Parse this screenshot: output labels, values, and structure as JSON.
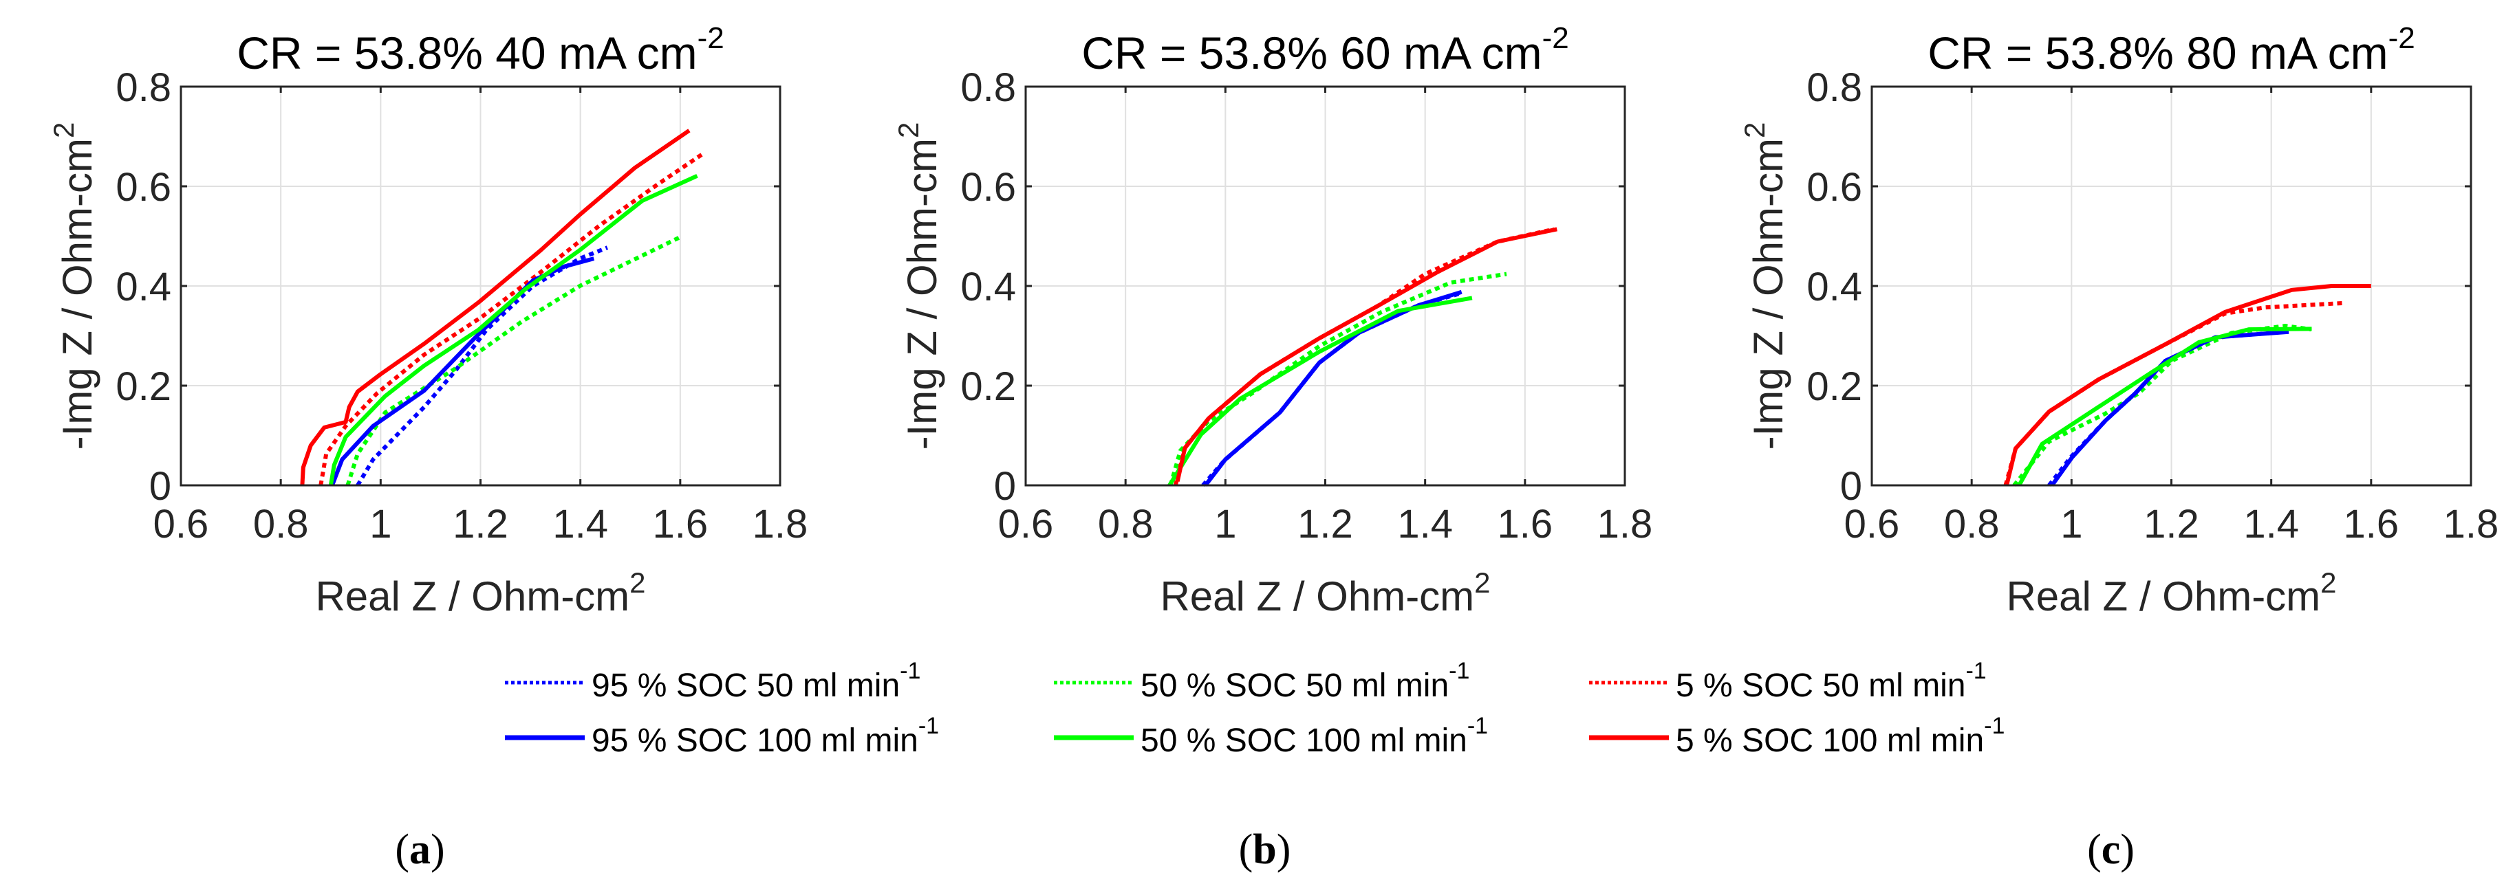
{
  "chart_data": {
    "type": "line",
    "panels": [
      {
        "label": "a",
        "title": "CR = 53.8%  40 mA cm",
        "title_sup": "-2",
        "xlabel": "Real Z / Ohm-cm",
        "xlabel_sup": "2",
        "ylabel": "-Img Z / Ohm-cm",
        "ylabel_sup": "2",
        "xlim": [
          0.6,
          1.8
        ],
        "ylim": [
          0,
          0.8
        ],
        "xticks": [
          "0.6",
          "0.8",
          "1",
          "1.2",
          "1.4",
          "1.6",
          "1.8"
        ],
        "yticks": [
          "0",
          "0.2",
          "0.4",
          "0.6",
          "0.8"
        ],
        "grid": true,
        "series": [
          {
            "name": "95 % SOC 50 ml min-1",
            "points": [
              [
                0.954,
                0
              ],
              [
                0.985,
                0.052
              ],
              [
                1.087,
                0.157
              ],
              [
                1.149,
                0.229
              ],
              [
                1.212,
                0.312
              ],
              [
                1.305,
                0.4
              ],
              [
                1.399,
                0.455
              ],
              [
                1.454,
                0.477
              ]
            ]
          },
          {
            "name": "50 % SOC 50 ml min-1",
            "points": [
              [
                0.934,
                0
              ],
              [
                0.954,
                0.063
              ],
              [
                1.009,
                0.146
              ],
              [
                1.149,
                0.234
              ],
              [
                1.282,
                0.328
              ],
              [
                1.399,
                0.4
              ],
              [
                1.602,
                0.499
              ]
            ]
          },
          {
            "name": "5 % SOC 50 ml min-1",
            "points": [
              [
                0.88,
                0
              ],
              [
                0.891,
                0.063
              ],
              [
                0.93,
                0.119
              ],
              [
                0.993,
                0.185
              ],
              [
                1.087,
                0.262
              ],
              [
                1.204,
                0.339
              ],
              [
                1.321,
                0.428
              ],
              [
                1.438,
                0.521
              ],
              [
                1.555,
                0.604
              ],
              [
                1.645,
                0.665
              ]
            ]
          },
          {
            "name": "95 % SOC 100 ml min-1",
            "points": [
              [
                0.903,
                0
              ],
              [
                0.923,
                0.052
              ],
              [
                0.985,
                0.119
              ],
              [
                1.087,
                0.19
              ],
              [
                1.188,
                0.295
              ],
              [
                1.305,
                0.411
              ],
              [
                1.368,
                0.439
              ],
              [
                1.427,
                0.455
              ]
            ]
          },
          {
            "name": "50 % SOC 100 ml min-1",
            "points": [
              [
                0.9,
                0
              ],
              [
                0.907,
                0.041
              ],
              [
                0.93,
                0.097
              ],
              [
                1.009,
                0.179
              ],
              [
                1.087,
                0.24
              ],
              [
                1.196,
                0.312
              ],
              [
                1.29,
                0.394
              ],
              [
                1.399,
                0.472
              ],
              [
                1.524,
                0.571
              ],
              [
                1.634,
                0.621
              ]
            ]
          },
          {
            "name": "5 % SOC 100 ml min-1",
            "points": [
              [
                0.843,
                0
              ],
              [
                0.845,
                0.036
              ],
              [
                0.86,
                0.08
              ],
              [
                0.887,
                0.116
              ],
              [
                0.93,
                0.127
              ],
              [
                0.937,
                0.157
              ],
              [
                0.954,
                0.188
              ],
              [
                1.0,
                0.223
              ],
              [
                1.087,
                0.284
              ],
              [
                1.196,
                0.367
              ],
              [
                1.321,
                0.472
              ],
              [
                1.399,
                0.543
              ],
              [
                1.509,
                0.637
              ],
              [
                1.618,
                0.712
              ]
            ]
          }
        ]
      },
      {
        "label": "b",
        "title": "CR = 53.8%  60 mA cm",
        "title_sup": "-2",
        "xlabel": "Real Z / Ohm-cm",
        "xlabel_sup": "2",
        "ylabel": "-Img Z / Ohm-cm",
        "ylabel_sup": "2",
        "xlim": [
          0.6,
          1.8
        ],
        "ylim": [
          0,
          0.8
        ],
        "xticks": [
          "0.6",
          "0.8",
          "1",
          "1.2",
          "1.4",
          "1.6",
          "1.8"
        ],
        "yticks": [
          "0",
          "0.2",
          "0.4",
          "0.6",
          "0.8"
        ],
        "grid": true,
        "series": [
          {
            "name": "95 % SOC 50 ml min-1",
            "points": [
              [
                0.955,
                0
              ],
              [
                0.998,
                0.05
              ],
              [
                1.109,
                0.146
              ],
              [
                1.188,
                0.246
              ],
              [
                1.267,
                0.306
              ],
              [
                1.386,
                0.361
              ],
              [
                1.47,
                0.385
              ]
            ]
          },
          {
            "name": "50 % SOC 50 ml min-1",
            "points": [
              [
                0.89,
                0
              ],
              [
                0.91,
                0.07
              ],
              [
                0.967,
                0.13
              ],
              [
                1.054,
                0.185
              ],
              [
                1.188,
                0.279
              ],
              [
                1.313,
                0.348
              ],
              [
                1.452,
                0.407
              ],
              [
                1.563,
                0.424
              ]
            ]
          },
          {
            "name": "5 % SOC 50 ml min-1",
            "points": [
              [
                0.9,
                0
              ],
              [
                0.919,
                0.075
              ],
              [
                0.967,
                0.135
              ],
              [
                1.07,
                0.223
              ],
              [
                1.188,
                0.295
              ],
              [
                1.307,
                0.361
              ],
              [
                1.4,
                0.424
              ],
              [
                1.545,
                0.489
              ],
              [
                1.658,
                0.514
              ]
            ]
          },
          {
            "name": "95 % SOC 100 ml min-1",
            "points": [
              [
                0.96,
                0
              ],
              [
                1.0,
                0.052
              ],
              [
                1.109,
                0.146
              ],
              [
                1.188,
                0.246
              ],
              [
                1.267,
                0.306
              ],
              [
                1.386,
                0.361
              ],
              [
                1.473,
                0.388
              ]
            ]
          },
          {
            "name": "50 % SOC 100 ml min-1",
            "points": [
              [
                0.888,
                0
              ],
              [
                0.951,
                0.102
              ],
              [
                1.03,
                0.174
              ],
              [
                1.188,
                0.268
              ],
              [
                1.346,
                0.35
              ],
              [
                1.494,
                0.376
              ]
            ]
          },
          {
            "name": "5 % SOC 100 ml min-1",
            "points": [
              [
                0.904,
                0.008
              ],
              [
                0.919,
                0.075
              ],
              [
                0.967,
                0.135
              ],
              [
                1.07,
                0.223
              ],
              [
                1.188,
                0.295
              ],
              [
                1.307,
                0.361
              ],
              [
                1.425,
                0.428
              ],
              [
                1.545,
                0.489
              ],
              [
                1.664,
                0.514
              ]
            ]
          }
        ]
      },
      {
        "label": "c",
        "title": "CR = 53.8%  80 mA cm",
        "title_sup": "-2",
        "xlabel": "Real Z / Ohm-cm",
        "xlabel_sup": "2",
        "ylabel": "-Img Z / Ohm-cm",
        "ylabel_sup": "2",
        "xlim": [
          0.6,
          1.8
        ],
        "ylim": [
          0,
          0.8
        ],
        "xticks": [
          "0.6",
          "0.8",
          "1",
          "1.2",
          "1.4",
          "1.6",
          "1.8"
        ],
        "yticks": [
          "0",
          "0.2",
          "0.4",
          "0.6",
          "0.8"
        ],
        "grid": true,
        "series": [
          {
            "name": "95 % SOC 50 ml min-1",
            "points": [
              [
                0.955,
                0
              ],
              [
                0.998,
                0.056
              ],
              [
                1.068,
                0.13
              ],
              [
                1.128,
                0.185
              ],
              [
                1.188,
                0.25
              ],
              [
                1.288,
                0.297
              ],
              [
                1.43,
                0.308
              ]
            ]
          },
          {
            "name": "50 % SOC 50 ml min-1",
            "points": [
              [
                0.885,
                0
              ],
              [
                0.955,
                0.088
              ],
              [
                1.068,
                0.144
              ],
              [
                1.135,
                0.185
              ],
              [
                1.201,
                0.25
              ],
              [
                1.321,
                0.306
              ],
              [
                1.428,
                0.32
              ],
              [
                1.48,
                0.313
              ]
            ]
          },
          {
            "name": "5 % SOC 50 ml min-1",
            "points": [
              [
                0.868,
                0
              ],
              [
                0.888,
                0.074
              ],
              [
                0.955,
                0.148
              ],
              [
                1.055,
                0.213
              ],
              [
                1.188,
                0.283
              ],
              [
                1.308,
                0.345
              ],
              [
                1.388,
                0.357
              ],
              [
                1.548,
                0.366
              ]
            ]
          },
          {
            "name": "95 % SOC 100 ml min-1",
            "points": [
              [
                0.961,
                0
              ],
              [
                1.001,
                0.056
              ],
              [
                1.068,
                0.13
              ],
              [
                1.128,
                0.185
              ],
              [
                1.188,
                0.25
              ],
              [
                1.288,
                0.297
              ],
              [
                1.435,
                0.308
              ]
            ]
          },
          {
            "name": "50 % SOC 100 ml min-1",
            "points": [
              [
                0.895,
                0
              ],
              [
                0.941,
                0.083
              ],
              [
                1.055,
                0.158
              ],
              [
                1.161,
                0.227
              ],
              [
                1.255,
                0.287
              ],
              [
                1.355,
                0.313
              ],
              [
                1.481,
                0.314
              ]
            ]
          },
          {
            "name": "5 % SOC 100 ml min-1",
            "points": [
              [
                0.87,
                0
              ],
              [
                0.888,
                0.074
              ],
              [
                0.955,
                0.148
              ],
              [
                1.055,
                0.213
              ],
              [
                1.188,
                0.283
              ],
              [
                1.308,
                0.348
              ],
              [
                1.441,
                0.392
              ],
              [
                1.521,
                0.4
              ],
              [
                1.6,
                0.4
              ]
            ]
          }
        ]
      }
    ],
    "legend": {
      "placement": "bottom",
      "entries": [
        {
          "label": "95 % SOC 50 ml min",
          "sup": "-1",
          "color": "#0000ff",
          "style": "dotted"
        },
        {
          "label": "50 % SOC 50 ml min",
          "sup": "-1",
          "color": "#00ff00",
          "style": "dotted"
        },
        {
          "label": "5 % SOC 50 ml min",
          "sup": "-1",
          "color": "#ff0000",
          "style": "dotted"
        },
        {
          "label": "95 % SOC 100 ml min",
          "sup": "-1",
          "color": "#0000ff",
          "style": "solid"
        },
        {
          "label": "50 % SOC 100 ml min",
          "sup": "-1",
          "color": "#00ff00",
          "style": "solid"
        },
        {
          "label": "5 % SOC 100 ml min",
          "sup": "-1",
          "color": "#ff0000",
          "style": "solid"
        }
      ]
    }
  }
}
